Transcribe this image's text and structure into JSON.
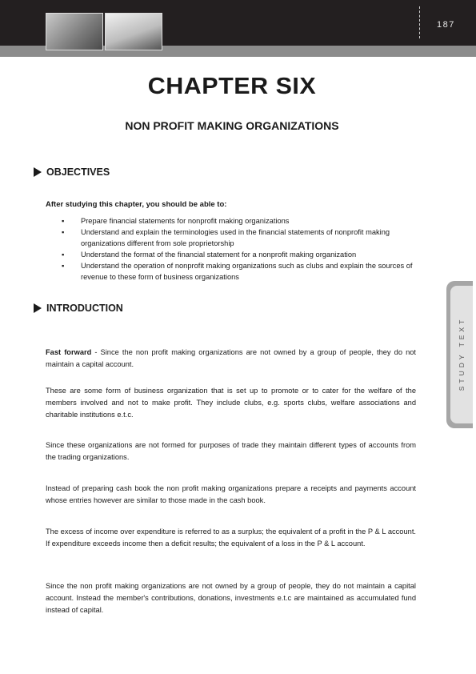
{
  "header": {
    "page_number": "187"
  },
  "title": {
    "chapter": "CHAPTER SIX",
    "subtitle": "NON PROFIT MAKING ORGANIZATIONS"
  },
  "objectives": {
    "heading": "OBJECTIVES",
    "lead": "After studying this chapter, you should be able to:",
    "items": [
      "Prepare financial statements for nonprofit making organizations",
      "Understand and explain the terminologies used in the financial statements of nonprofit making organizations different from sole proprietorship",
      "Understand the format of the financial statement for a nonprofit making organization",
      "Understand the operation of nonprofit making organizations such as clubs and explain the sources of revenue to these form of business organizations"
    ]
  },
  "introduction": {
    "heading": "INTRODUCTION",
    "fast_forward_label": "Fast forward",
    "fast_forward_text": " - Since the non profit making organizations are not owned by a group of people, they do not maintain a capital account.",
    "paragraphs": [
      "These are some form of business organization that is set up to promote or to cater for the welfare of the members involved and not to make profit. They include clubs, e.g. sports clubs, welfare associations and charitable institutions e.t.c.",
      "Since these organizations are not formed for purposes of trade they maintain different types of accounts from the trading organizations.",
      "Instead of preparing cash book the non profit making organizations prepare a receipts and payments account whose entries however are similar to those made in the cash book.",
      "The excess of income over expenditure is referred to as a surplus; the equivalent of a profit in the P & L account. If expenditure exceeds income then a deficit results; the equivalent of a loss in the P & L account.",
      "Since the non profit making organizations are not owned by a group of people, they do not maintain a capital account. Instead the member's contributions, donations, investments e.t.c are maintained as accumulated fund instead of capital."
    ]
  },
  "side_tab": {
    "label": "STUDY TEXT"
  }
}
